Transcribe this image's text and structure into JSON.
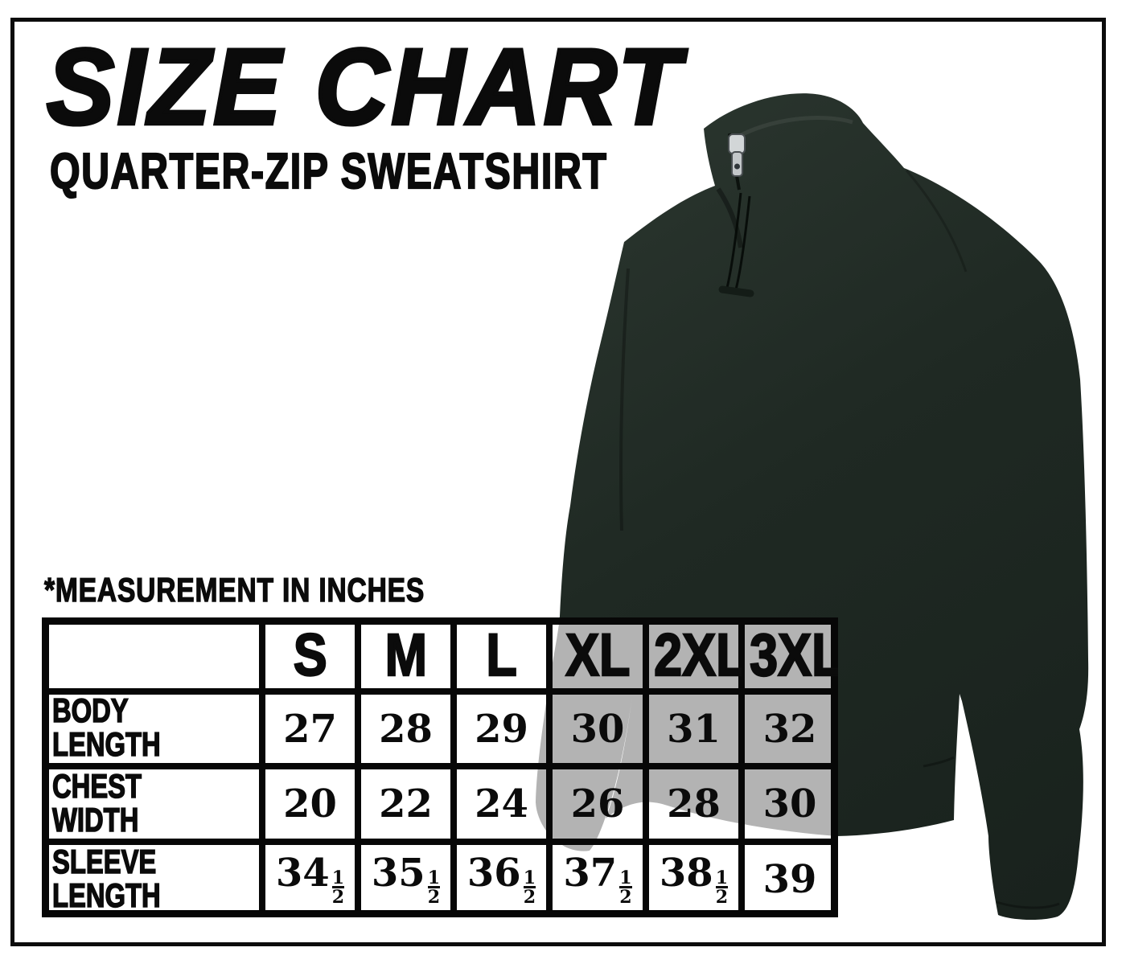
{
  "header": {
    "title": "SIZE CHART",
    "subtitle": "QUARTER-ZIP SWEATSHIRT"
  },
  "note": "*MEASUREMENT IN INCHES",
  "product": {
    "style": "quarter-zip sweatshirt silhouette, three-quarter view",
    "body_color": "#202a24",
    "ghost_color": "#b3b3b3",
    "zipper_pull_color": "#d2d6d7",
    "grid_line_color": "#070707"
  },
  "size_table": {
    "columns": [
      "S",
      "M",
      "L",
      "XL",
      "2XL",
      "3XL"
    ],
    "rows": [
      {
        "label": "BODY LENGTH",
        "values": [
          "27",
          "28",
          "29",
          "30",
          "31",
          "32"
        ]
      },
      {
        "label": "CHEST WIDTH",
        "values": [
          "20",
          "22",
          "24",
          "26",
          "28",
          "30"
        ]
      },
      {
        "label": "SLEEVE LENGTH",
        "values": [
          "34½",
          "35½",
          "36½",
          "37½",
          "38½",
          "39"
        ]
      }
    ]
  }
}
